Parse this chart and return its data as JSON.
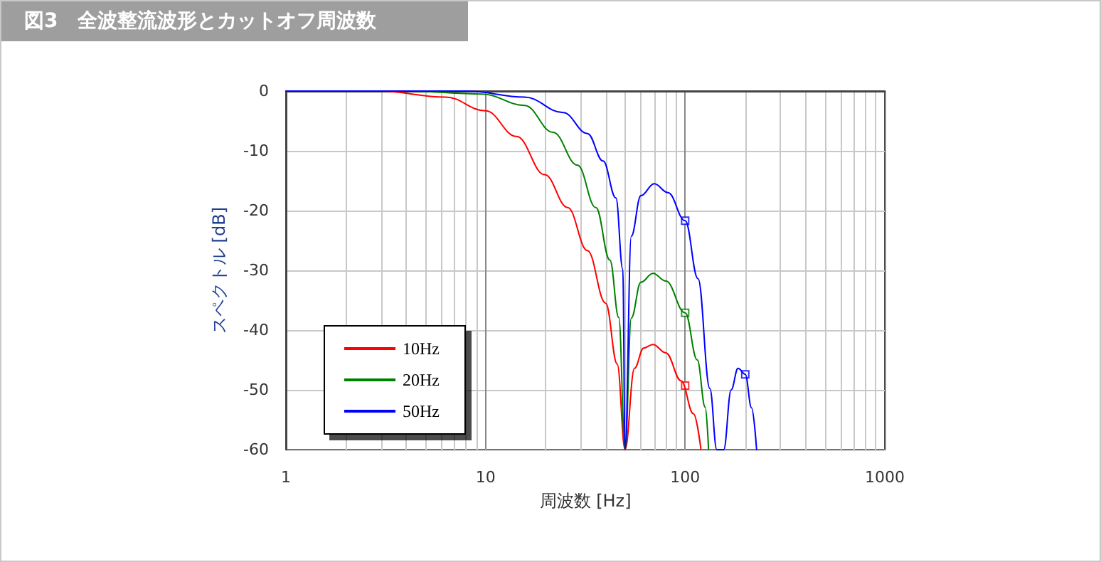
{
  "chart_data": {
    "type": "line",
    "title": "図3　全波整流波形とカットオフ周波数",
    "xlabel": "周波数 [Hz]",
    "ylabel": "スペクトル [dB]",
    "xlim": [
      1,
      1000
    ],
    "xticks": [
      1,
      10,
      100,
      1000
    ],
    "ylim": [
      -60,
      0
    ],
    "yticks": [
      -60,
      -50,
      -40,
      -30,
      -20,
      -10,
      0
    ],
    "log": "x",
    "grid": true,
    "legend": "bottom left",
    "marker": "none",
    "line_style": "solid",
    "series": [
      {
        "name": "10Hz",
        "color": "#ff0000",
        "x": [
          1,
          2.9,
          6.3,
          10,
          14.3,
          19.8,
          25.8,
          32.4,
          40,
          45.7,
          50,
          55.7,
          62,
          69,
          80,
          95.6,
          110,
          120
        ],
        "values": [
          0,
          0,
          -1,
          -3.3,
          -7.6,
          -14,
          -19.5,
          -26.7,
          -35.5,
          -45.7,
          -60,
          -46.4,
          -43,
          -42.4,
          -43.8,
          -48.5,
          -54,
          -60
        ]
      },
      {
        "name": "20Hz",
        "color": "#008000",
        "x": [
          1,
          4,
          9.6,
          15.7,
          21.8,
          28.9,
          35.7,
          42,
          46.5,
          50,
          53.7,
          60,
          69,
          80,
          100,
          115,
          126,
          131
        ],
        "values": [
          0,
          0,
          -0.5,
          -2.4,
          -6.9,
          -12.4,
          -19.5,
          -28.3,
          -37.9,
          -60,
          -38,
          -32,
          -30.5,
          -31.8,
          -37.1,
          -45,
          -52.9,
          -60
        ]
      },
      {
        "name": "50Hz",
        "color": "#0000ff",
        "x": [
          1,
          8,
          15.7,
          24.5,
          32.4,
          38.8,
          45,
          48.7,
          50,
          53.7,
          60,
          70,
          82,
          100,
          116,
          133,
          144,
          156,
          170,
          184,
          200,
          215,
          228
        ],
        "values": [
          0,
          0,
          -1,
          -3.6,
          -7.1,
          -11.7,
          -17.9,
          -29.8,
          -60,
          -24.3,
          -17.5,
          -15.5,
          -17,
          -21.7,
          -31.4,
          -49.8,
          -60,
          -60,
          -50,
          -46.4,
          -47.4,
          -53,
          -60
        ]
      },
      {
        "type": "scatter",
        "marker": "square",
        "color": "#ff0000",
        "x": [
          100
        ],
        "values": [
          -49.3
        ]
      },
      {
        "type": "scatter",
        "marker": "square",
        "color": "#008000",
        "x": [
          100
        ],
        "values": [
          -37.1
        ]
      },
      {
        "type": "scatter",
        "marker": "square",
        "color": "#0000ff",
        "x": [
          100,
          200
        ],
        "values": [
          -21.7,
          -47.4
        ]
      }
    ]
  }
}
